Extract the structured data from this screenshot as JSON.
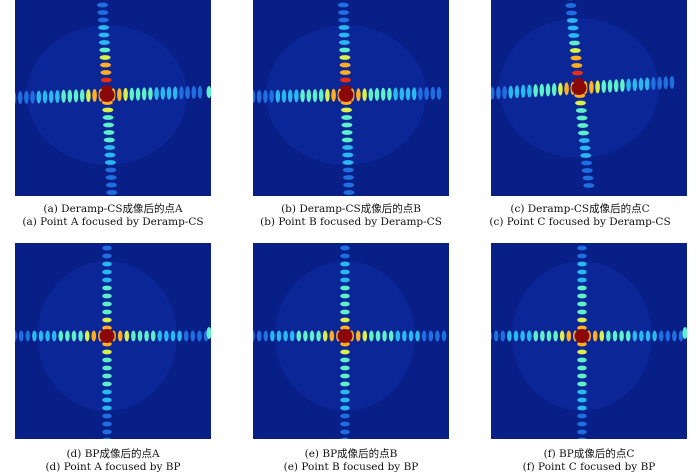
{
  "figure": {
    "panels": [
      {
        "id": "a",
        "point": "A",
        "method": "Deramp-CS",
        "style": "deramp",
        "caption_cn": "(a) Deramp-CS成像后的点A",
        "caption_en": "(a) Point A focused by Deramp-CS"
      },
      {
        "id": "b",
        "point": "B",
        "method": "Deramp-CS",
        "style": "deramp",
        "caption_cn": "(b) Deramp-CS成像后的点B",
        "caption_en": "(b) Point B focused by Deramp-CS"
      },
      {
        "id": "c",
        "point": "C",
        "method": "Deramp-CS",
        "style": "deramp",
        "caption_cn": "(c) Deramp-CS成像后的点C",
        "caption_en": "(c) Point C focused by Deramp-CS"
      },
      {
        "id": "d",
        "point": "A",
        "method": "BP",
        "style": "bp",
        "caption_cn": "(d) BP成像后的点A",
        "caption_en": "(d) Point A focused by BP"
      },
      {
        "id": "e",
        "point": "B",
        "method": "BP",
        "style": "bp",
        "caption_cn": "(e) BP成像后的点B",
        "caption_en": "(e) Point B focused by BP"
      },
      {
        "id": "f",
        "point": "C",
        "method": "BP",
        "style": "bp",
        "caption_cn": "(f) BP成像后的点C",
        "caption_en": "(f) Point C focused by BP"
      }
    ],
    "colors": {
      "background": "#071f86",
      "colormap": [
        "#0a2ba8",
        "#1f6fe0",
        "#29b8f0",
        "#5ef0c8",
        "#d8f04a",
        "#ffb020",
        "#e83010",
        "#8a0808"
      ]
    }
  }
}
